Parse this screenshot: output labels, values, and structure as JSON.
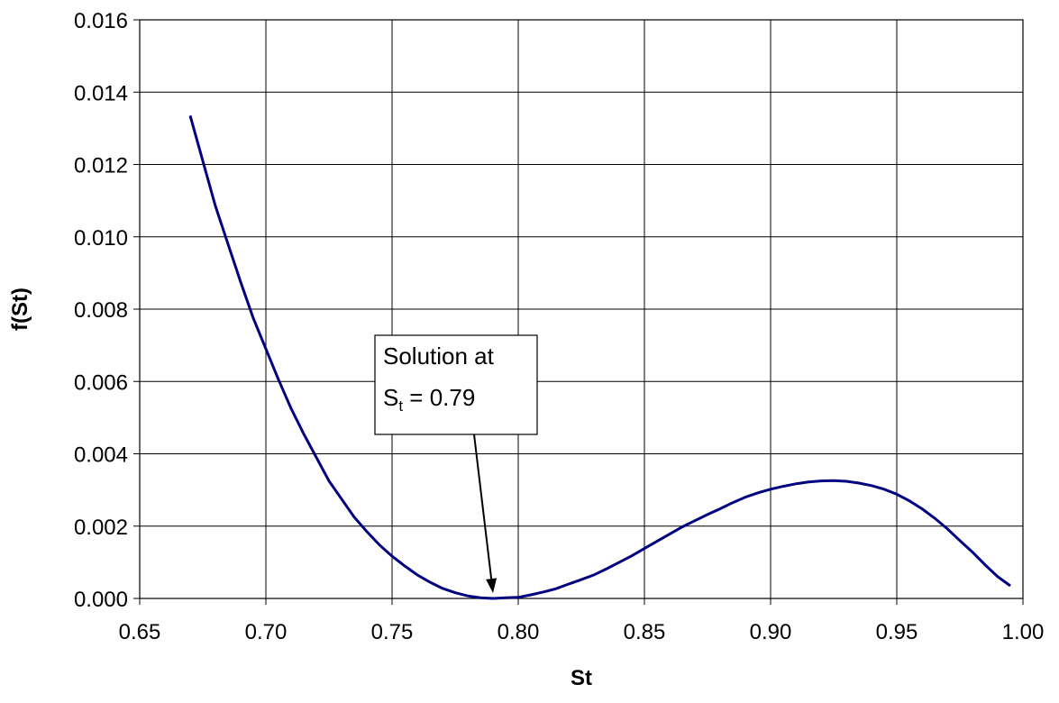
{
  "chart_data": {
    "type": "line",
    "xlabel": "St",
    "ylabel": "f(St)",
    "xlim": [
      0.65,
      1.0
    ],
    "ylim": [
      0.0,
      0.016
    ],
    "x_ticks": [
      "0.65",
      "0.70",
      "0.75",
      "0.80",
      "0.85",
      "0.90",
      "0.95",
      "1.00"
    ],
    "y_ticks": [
      "0.000",
      "0.002",
      "0.004",
      "0.006",
      "0.008",
      "0.010",
      "0.012",
      "0.014",
      "0.016"
    ],
    "x_tick_values": [
      0.65,
      0.7,
      0.75,
      0.8,
      0.85,
      0.9,
      0.95,
      1.0
    ],
    "y_tick_values": [
      0.0,
      0.002,
      0.004,
      0.006,
      0.008,
      0.01,
      0.012,
      0.014,
      0.016
    ],
    "grid": true,
    "legend": "none",
    "line_color": "#000080",
    "series": [
      {
        "x": [
          0.67,
          0.675,
          0.68,
          0.685,
          0.69,
          0.695,
          0.7,
          0.705,
          0.71,
          0.715,
          0.72,
          0.725,
          0.73,
          0.735,
          0.74,
          0.745,
          0.75,
          0.755,
          0.76,
          0.765,
          0.77,
          0.775,
          0.78,
          0.785,
          0.79,
          0.795,
          0.8,
          0.805,
          0.81,
          0.815,
          0.82,
          0.825,
          0.83,
          0.835,
          0.84,
          0.845,
          0.85,
          0.855,
          0.86,
          0.865,
          0.87,
          0.875,
          0.88,
          0.885,
          0.89,
          0.895,
          0.9,
          0.905,
          0.91,
          0.915,
          0.92,
          0.925,
          0.93,
          0.935,
          0.94,
          0.945,
          0.95,
          0.955,
          0.96,
          0.965,
          0.97,
          0.975,
          0.98,
          0.985,
          0.99,
          0.995
        ],
        "values": [
          0.01335,
          0.0121,
          0.01085,
          0.0098,
          0.00875,
          0.00775,
          0.0069,
          0.00605,
          0.00525,
          0.00455,
          0.0039,
          0.00325,
          0.00275,
          0.00225,
          0.00185,
          0.00148,
          0.00117,
          0.0009,
          0.00065,
          0.00045,
          0.00028,
          0.00016,
          7e-05,
          2e-05,
          0.0,
          2e-05,
          3e-05,
          0.0001,
          0.00018,
          0.00027,
          0.0004,
          0.00052,
          0.00065,
          0.00082,
          0.001,
          0.00118,
          0.00138,
          0.00158,
          0.00178,
          0.00198,
          0.00215,
          0.00232,
          0.00248,
          0.00265,
          0.0028,
          0.00292,
          0.00302,
          0.0031,
          0.00317,
          0.00322,
          0.00325,
          0.00326,
          0.00324,
          0.00319,
          0.00312,
          0.00302,
          0.00288,
          0.0027,
          0.00248,
          0.00222,
          0.00193,
          0.0016,
          0.00128,
          0.00093,
          0.0006,
          0.00035
        ]
      }
    ],
    "annotations": [
      {
        "text_line1": "Solution at",
        "text_line2_main": "S",
        "text_line2_sub": "t",
        "text_line2_rest": " = 0.79",
        "points_to_x": 0.79,
        "points_to_y": 0.0
      }
    ]
  }
}
